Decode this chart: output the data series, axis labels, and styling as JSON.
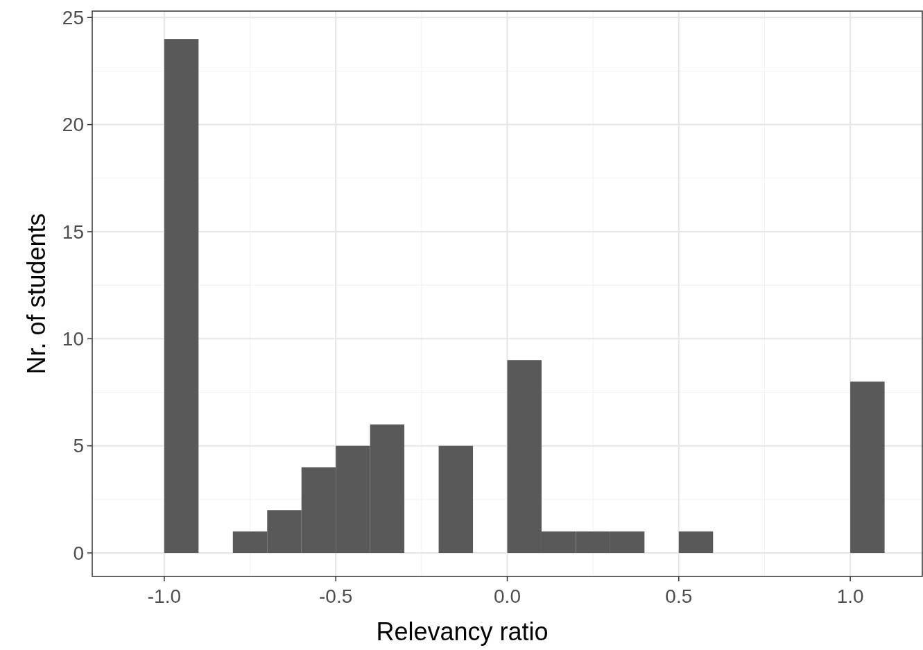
{
  "chart_data": {
    "type": "histogram",
    "xlabel": "Relevancy ratio",
    "ylabel": "Nr. of students",
    "bins": [
      -1.0,
      -0.9,
      -0.8,
      -0.7,
      -0.6,
      -0.5,
      -0.4,
      -0.3,
      -0.2,
      -0.1,
      0.0,
      0.1,
      0.2,
      0.3,
      0.4,
      0.5,
      0.6,
      0.7,
      0.8,
      0.9,
      1.0,
      1.1
    ],
    "values": [
      24,
      0,
      1,
      2,
      4,
      5,
      6,
      0,
      5,
      0,
      9,
      1,
      1,
      1,
      0,
      1,
      0,
      0,
      0,
      0,
      8
    ],
    "color": "#595959",
    "xlim": [
      -1.21,
      1.21
    ],
    "xticks": [
      {
        "value": -1,
        "label": "-1.0"
      },
      {
        "value": -0.5,
        "label": "-0.5"
      },
      {
        "value": 0,
        "label": "0.0"
      },
      {
        "value": 0.5,
        "label": "0.5"
      },
      {
        "value": 1,
        "label": "1.0"
      }
    ],
    "ylim": [
      -1.1,
      25.3
    ],
    "yticks": [
      0,
      5,
      10,
      15,
      20,
      25
    ],
    "grid": true
  }
}
